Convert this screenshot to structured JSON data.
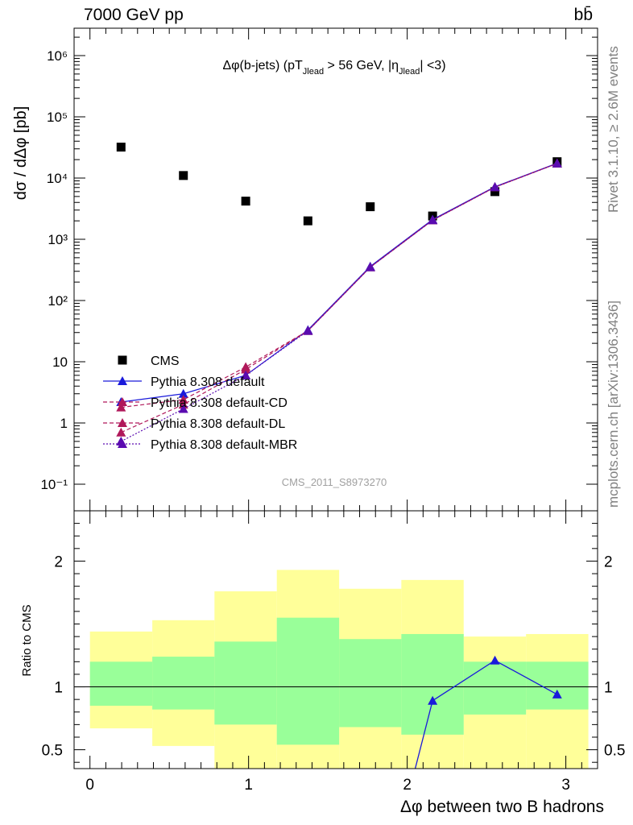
{
  "header": {
    "energy_label": "7000 GeV pp",
    "process_label": "bb̄"
  },
  "side_labels": {
    "rivet": "Rivet 3.1.10, ≥ 2.6M events",
    "mcplots": "mcplots.cern.ch [arXiv:1306.3436]"
  },
  "chart_data": [
    {
      "type": "scatter",
      "title": "Δφ(b-jets) (pT_Jlead > 56 GeV, |η_Jlead| <3)",
      "ylabel": "dσ / dΔφ [pb]",
      "xlabel": "",
      "yscale": "log",
      "xlim": [
        -0.1,
        3.2
      ],
      "ylim": [
        0.06,
        2500000
      ],
      "y_tick_labels": [
        "10⁻¹",
        "1",
        "10",
        "10²",
        "10³",
        "10⁴",
        "10⁵",
        "10⁶"
      ],
      "watermark": "CMS_2011_S8973270",
      "legend_position": "bottom-left",
      "series": [
        {
          "name": "CMS",
          "color": "#000000",
          "marker": "square",
          "line": "none",
          "x": [
            0.196,
            0.589,
            0.982,
            1.374,
            1.767,
            2.16,
            2.553,
            2.945
          ],
          "y": [
            32000,
            11000,
            4200,
            2000,
            3400,
            2400,
            6000,
            18500
          ]
        },
        {
          "name": "Pythia 8.308 default",
          "color": "#1a1adb",
          "marker": "triangle",
          "line": "solid",
          "x": [
            0.196,
            0.589,
            0.982,
            1.374,
            1.767,
            2.16,
            2.553,
            2.945
          ],
          "y": [
            2.2,
            3.0,
            6.0,
            33,
            360,
            2100,
            7200,
            17500
          ]
        },
        {
          "name": "Pythia 8.308 default-CD",
          "color": "#b0185a",
          "marker": "triangle",
          "line": "dashed",
          "x": [
            0.196,
            0.589,
            0.982,
            1.374,
            1.767,
            2.16,
            2.553,
            2.945
          ],
          "y": [
            1.8,
            2.4,
            8.2,
            32,
            350,
            2050,
            7100,
            17300
          ]
        },
        {
          "name": "Pythia 8.308 default-DL",
          "color": "#b0185a",
          "marker": "triangle",
          "line": "dashed",
          "x": [
            0.196,
            0.589,
            0.982,
            1.374,
            1.767,
            2.16,
            2.553,
            2.945
          ],
          "y": [
            0.7,
            2.0,
            7.5,
            32,
            350,
            2050,
            7100,
            17300
          ]
        },
        {
          "name": "Pythia 8.308 default-MBR",
          "color": "#5a0bb0",
          "marker": "triangle",
          "line": "dotted",
          "x": [
            0.196,
            0.589,
            0.982,
            1.374,
            1.767,
            2.16,
            2.553,
            2.945
          ],
          "y": [
            0.5,
            1.7,
            6.0,
            32,
            350,
            2050,
            7100,
            17300
          ]
        }
      ]
    },
    {
      "type": "line",
      "title": "",
      "ylabel": "Ratio to CMS",
      "xlabel": "Δφ between two B hadrons",
      "xlim": [
        -0.1,
        3.2
      ],
      "ylim": [
        0.35,
        2.4
      ],
      "x_ticks": [
        0,
        1,
        2,
        3
      ],
      "y_ticks": [
        0.5,
        1,
        2
      ],
      "bin_edges": [
        0.0,
        0.393,
        0.785,
        1.178,
        1.571,
        1.963,
        2.356,
        2.749,
        3.142
      ],
      "band_inner": {
        "color": "#99ff99",
        "low": [
          0.85,
          0.82,
          0.7,
          0.54,
          0.68,
          0.62,
          0.78,
          0.82
        ],
        "high": [
          1.2,
          1.24,
          1.36,
          1.55,
          1.38,
          1.42,
          1.2,
          1.2
        ]
      },
      "band_outer": {
        "color": "#ffff99",
        "low": [
          0.67,
          0.53,
          0.34,
          0.34,
          0.34,
          0.34,
          0.34,
          0.34
        ],
        "high": [
          1.44,
          1.53,
          1.76,
          1.93,
          1.78,
          1.85,
          1.4,
          1.42
        ]
      },
      "series": [
        {
          "name": "Pythia 8.308 default",
          "color": "#1a1adb",
          "x": [
            2.16,
            2.553,
            2.945
          ],
          "y": [
            0.89,
            1.21,
            0.94
          ]
        }
      ]
    }
  ]
}
